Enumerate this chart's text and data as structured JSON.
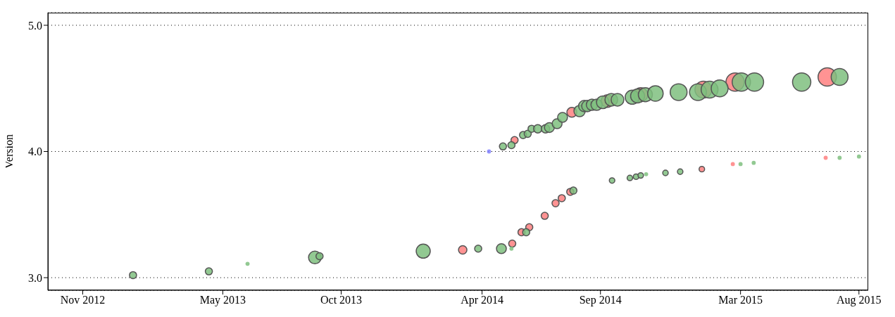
{
  "chart_data": {
    "type": "bubble",
    "ylabel": "Version",
    "grid": "y",
    "line_style": "dotted",
    "xlim": [
      "2012-09-17",
      "2015-08-13"
    ],
    "xticks": [
      {
        "value": "2012-11-01",
        "label": "Nov 2012"
      },
      {
        "value": "2013-05-01",
        "label": "May 2013"
      },
      {
        "value": "2013-10-01",
        "label": "Oct 2013"
      },
      {
        "value": "2014-04-01",
        "label": "Apr 2014"
      },
      {
        "value": "2014-09-01",
        "label": "Sep 2014"
      },
      {
        "value": "2015-03-01",
        "label": "Mar 2015"
      },
      {
        "value": "2015-08-01",
        "label": "Aug 2015"
      }
    ],
    "ylim": [
      2.9,
      5.1
    ],
    "yticks": [
      {
        "value": 3,
        "label": "3.0"
      },
      {
        "value": 4,
        "label": "4.0"
      },
      {
        "value": 5,
        "label": "5.0"
      }
    ],
    "series": [
      {
        "color": "#7fbf7f",
        "x": [
          "2013-01-05",
          "2013-04-13",
          "2013-06-02",
          "2013-08-28",
          "2013-09-03",
          "2014-01-15",
          "2014-03-27",
          "2014-04-26",
          "2014-05-09",
          "2014-05-28",
          "2014-07-28",
          "2014-09-16",
          "2014-10-09",
          "2014-10-17",
          "2014-10-23",
          "2014-10-30",
          "2014-11-24",
          "2014-12-13",
          "2015-03-01",
          "2015-03-18",
          "2015-07-07",
          "2015-08-01",
          "2014-04-28",
          "2014-05-09",
          "2014-05-24",
          "2014-05-30",
          "2014-06-04",
          "2014-06-12",
          "2014-06-22",
          "2014-06-27",
          "2014-07-07",
          "2014-07-14",
          "2014-08-05",
          "2014-08-11",
          "2014-08-15",
          "2014-08-21",
          "2014-08-27",
          "2014-09-04",
          "2014-09-15",
          "2014-09-23",
          "2014-10-12",
          "2014-10-19",
          "2014-10-29",
          "2014-11-11",
          "2014-12-11",
          "2015-01-05",
          "2015-01-20",
          "2015-02-02",
          "2015-03-02",
          "2015-03-19",
          "2015-05-19",
          "2015-07-07"
        ],
        "values": [
          3.02,
          3.05,
          3.11,
          3.16,
          3.17,
          3.21,
          3.23,
          3.23,
          3.23,
          3.36,
          3.69,
          3.77,
          3.79,
          3.8,
          3.81,
          3.82,
          3.83,
          3.84,
          3.9,
          3.91,
          3.95,
          3.96,
          4.04,
          4.05,
          4.13,
          4.14,
          4.18,
          4.18,
          4.18,
          4.19,
          4.22,
          4.27,
          4.32,
          4.36,
          4.36,
          4.37,
          4.37,
          4.39,
          4.41,
          4.41,
          4.43,
          4.44,
          4.45,
          4.46,
          4.47,
          4.47,
          4.49,
          4.5,
          4.55,
          4.55,
          4.55,
          4.59
        ],
        "sizes": [
          0.15,
          0.15,
          0.05,
          0.48,
          0.15,
          0.59,
          0.15,
          0.29,
          0.05,
          0.15,
          0.15,
          0.09,
          0.09,
          0.09,
          0.09,
          0.05,
          0.09,
          0.09,
          0.05,
          0.05,
          0.05,
          0.05,
          0.15,
          0.15,
          0.15,
          0.15,
          0.15,
          0.21,
          0.21,
          0.29,
          0.29,
          0.29,
          0.38,
          0.38,
          0.38,
          0.38,
          0.38,
          0.48,
          0.48,
          0.48,
          0.59,
          0.59,
          0.59,
          0.72,
          0.85,
          0.85,
          0.85,
          0.85,
          1,
          1,
          1,
          0.85
        ]
      },
      {
        "color": "#ff8080",
        "x": [
          "2014-03-07",
          "2014-05-10",
          "2014-05-22",
          "2014-06-01",
          "2014-06-21",
          "2014-07-05",
          "2014-07-13",
          "2014-07-24",
          "2015-01-10",
          "2015-02-19",
          "2015-06-19",
          "2014-05-13",
          "2014-07-26",
          "2014-09-10",
          "2014-10-23",
          "2015-01-12",
          "2015-02-22",
          "2015-06-21"
        ],
        "values": [
          3.22,
          3.27,
          3.36,
          3.4,
          3.49,
          3.59,
          3.63,
          3.68,
          3.86,
          3.9,
          3.95,
          4.09,
          4.31,
          4.4,
          4.45,
          4.49,
          4.55,
          4.59
        ],
        "sizes": [
          0.21,
          0.15,
          0.15,
          0.15,
          0.15,
          0.15,
          0.15,
          0.15,
          0.09,
          0.05,
          0.05,
          0.15,
          0.29,
          0.48,
          0.59,
          0.85,
          1,
          1
        ]
      },
      {
        "color": "#8080ff",
        "x": [
          "2014-04-10"
        ],
        "values": [
          4.0
        ],
        "sizes": [
          0.05
        ]
      }
    ]
  }
}
